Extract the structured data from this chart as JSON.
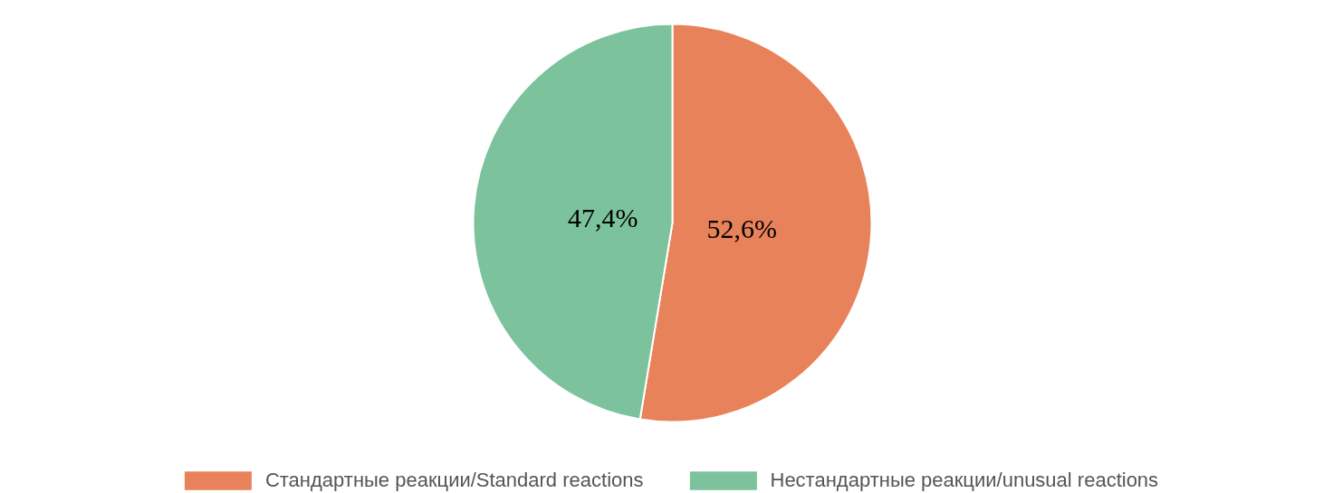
{
  "chart_data": {
    "type": "pie",
    "categories": [
      "Стандартные реакции/Standard reactions",
      "Нестандартные реакции/unusual reactions"
    ],
    "values": [
      52.6,
      47.4
    ],
    "colors": [
      "#e8825a",
      "#7cc29c"
    ],
    "value_labels": [
      "52,6%",
      "47,4%"
    ],
    "legend": "bottom"
  }
}
